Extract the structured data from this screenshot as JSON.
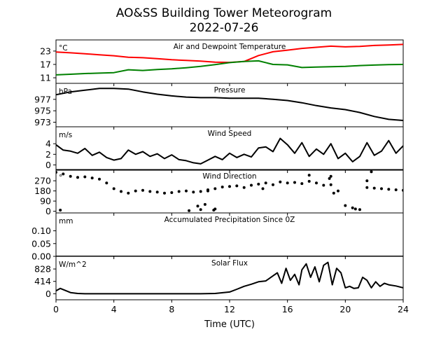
{
  "title": "AO&SS Building Tower Meteorogram",
  "subtitle": "2022-07-26",
  "chart_data": [
    {
      "type": "line",
      "title": "Air and Dewpoint Temperature",
      "unit": "°C",
      "yticks": [
        11,
        17,
        23
      ],
      "ylim": [
        8.5,
        28
      ],
      "xlim": [
        0,
        24
      ],
      "series": [
        {
          "color": "#ff0000",
          "x": [
            0,
            1,
            2,
            3,
            4,
            5,
            6,
            7,
            8,
            9,
            10,
            11,
            12,
            13,
            14,
            15,
            16,
            17,
            18,
            19,
            20,
            21,
            22,
            23,
            24
          ],
          "values": [
            22.6,
            22.2,
            21.8,
            21.3,
            20.9,
            20.2,
            20.0,
            19.6,
            19.1,
            18.8,
            18.5,
            18.0,
            17.9,
            18.3,
            21.0,
            22.7,
            23.4,
            24.2,
            24.7,
            25.2,
            24.9,
            25.1,
            25.5,
            25.7,
            26.0
          ]
        },
        {
          "color": "#008000",
          "x": [
            0,
            1,
            2,
            3,
            4,
            5,
            6,
            7,
            8,
            9,
            10,
            11,
            12,
            13,
            14,
            15,
            16,
            17,
            18,
            19,
            20,
            21,
            22,
            23,
            24
          ],
          "values": [
            12.3,
            12.6,
            12.9,
            13.1,
            13.3,
            14.6,
            14.3,
            14.7,
            15.0,
            15.5,
            16.1,
            16.9,
            17.8,
            18.3,
            18.6,
            17.0,
            16.8,
            15.6,
            15.8,
            16.0,
            16.1,
            16.5,
            16.7,
            16.9,
            17.0
          ]
        }
      ]
    },
    {
      "type": "line",
      "title": "Pressure",
      "unit": "hPa",
      "yticks": [
        973,
        975,
        977
      ],
      "ylim": [
        972.2,
        979.8
      ],
      "xlim": [
        0,
        24
      ],
      "series": [
        {
          "color": "#000000",
          "x": [
            0,
            1,
            2,
            3,
            4,
            5,
            6,
            7,
            8,
            9,
            10,
            11,
            12,
            13,
            14,
            15,
            16,
            17,
            18,
            19,
            20,
            21,
            22,
            23,
            24
          ],
          "values": [
            977.8,
            978.3,
            978.6,
            978.9,
            978.9,
            978.8,
            978.3,
            977.9,
            977.6,
            977.4,
            977.3,
            977.3,
            977.2,
            977.2,
            977.2,
            977.0,
            976.8,
            976.4,
            975.9,
            975.5,
            975.2,
            974.7,
            974.0,
            973.5,
            973.3
          ]
        }
      ]
    },
    {
      "type": "line",
      "title": "Wind Speed",
      "unit": "m/s",
      "yticks": [
        0,
        2,
        4
      ],
      "ylim": [
        -1,
        7.2
      ],
      "xlim": [
        0,
        24
      ],
      "series": [
        {
          "color": "#000000",
          "x": [
            0,
            0.5,
            1,
            1.5,
            2,
            2.5,
            3,
            3.5,
            4,
            4.5,
            5,
            5.5,
            6,
            6.5,
            7,
            7.5,
            8,
            8.5,
            9,
            9.5,
            10,
            10.5,
            11,
            11.5,
            12,
            12.5,
            13,
            13.5,
            14,
            14.5,
            15,
            15.5,
            16,
            16.5,
            17,
            17.5,
            18,
            18.5,
            19,
            19.5,
            20,
            20.5,
            21,
            21.5,
            22,
            22.5,
            23,
            23.5,
            24
          ],
          "values": [
            3.8,
            2.8,
            2.6,
            2.2,
            3.1,
            1.8,
            2.4,
            1.4,
            0.9,
            1.2,
            2.8,
            2.0,
            2.5,
            1.6,
            2.1,
            1.2,
            1.9,
            1.0,
            0.8,
            0.4,
            0.2,
            0.9,
            1.6,
            1.0,
            2.2,
            1.4,
            2.0,
            1.5,
            3.2,
            3.4,
            2.5,
            5.0,
            3.8,
            2.2,
            4.2,
            1.6,
            3.0,
            2.0,
            4.0,
            1.2,
            2.2,
            0.6,
            1.6,
            4.2,
            1.8,
            2.6,
            4.6,
            2.2,
            3.6
          ]
        }
      ]
    },
    {
      "type": "scatter",
      "title": "Wind Direction",
      "unit": "°",
      "yticks": [
        0,
        90,
        180,
        270
      ],
      "ylim": [
        -15,
        370
      ],
      "xlim": [
        0,
        24
      ],
      "series": [
        {
          "color": "#000000",
          "x": [
            0,
            0.5,
            1,
            1.5,
            2,
            2.5,
            3,
            3.5,
            4,
            4.5,
            5,
            5.5,
            6,
            6.5,
            7,
            7.5,
            8,
            8.5,
            9,
            9.5,
            10,
            10.5,
            11,
            11.5,
            12,
            12.5,
            13,
            13.5,
            14,
            14.5,
            15,
            15.5,
            16,
            16.5,
            17,
            17.5,
            18,
            18.5,
            19,
            19.5,
            20,
            20.5,
            21,
            21.5,
            22,
            22.5,
            23,
            23.5,
            24,
            0.3,
            9.2,
            10,
            10.5,
            9.8,
            10.3,
            10.9,
            11,
            18.9,
            19,
            19.2,
            20.7,
            21.8,
            21.5,
            17.5,
            14.3
          ],
          "values": [
            345,
            330,
            310,
            300,
            305,
            295,
            285,
            250,
            200,
            175,
            160,
            180,
            185,
            175,
            170,
            160,
            165,
            175,
            180,
            170,
            175,
            190,
            200,
            215,
            220,
            225,
            210,
            230,
            240,
            250,
            235,
            260,
            250,
            255,
            245,
            265,
            250,
            230,
            235,
            180,
            50,
            30,
            15,
            210,
            205,
            200,
            195,
            190,
            185,
            10,
            5,
            15,
            180,
            45,
            60,
            10,
            20,
            290,
            310,
            160,
            20,
            350,
            270,
            320,
            200
          ]
        }
      ]
    },
    {
      "type": "line",
      "title": "Accumulated Precipitation Since 0Z",
      "unit": "mm",
      "yticks": [
        0.0,
        0.05,
        0.1
      ],
      "yticklabels": [
        "0.00",
        "0.05",
        "0.10"
      ],
      "ylim": [
        0,
        0.17
      ],
      "xlim": [
        0,
        24
      ],
      "series": [
        {
          "color": "#000000",
          "x": [
            0,
            24
          ],
          "values": [
            0,
            0
          ]
        }
      ]
    },
    {
      "type": "line",
      "title": "Solar Flux",
      "unit": "W/m^2",
      "yticks": [
        0,
        414,
        828
      ],
      "ylim": [
        -200,
        1250
      ],
      "xlim": [
        0,
        24
      ],
      "xticks": [
        0,
        4,
        8,
        12,
        16,
        20,
        24
      ],
      "xlabel": "Time (UTC)",
      "series": [
        {
          "color": "#000000",
          "x": [
            0,
            0.3,
            0.6,
            1,
            1.5,
            2,
            4,
            6,
            8,
            10,
            11,
            12,
            12.5,
            13,
            13.5,
            14,
            14.5,
            15,
            15.3,
            15.6,
            15.9,
            16.2,
            16.5,
            16.8,
            17,
            17.3,
            17.6,
            17.9,
            18.2,
            18.5,
            18.8,
            19.1,
            19.4,
            19.7,
            20,
            20.3,
            20.6,
            20.9,
            21.2,
            21.5,
            21.8,
            22.1,
            22.4,
            22.7,
            23,
            23.5,
            24
          ],
          "values": [
            100,
            180,
            120,
            40,
            10,
            0,
            0,
            0,
            0,
            0,
            10,
            60,
            150,
            250,
            320,
            400,
            430,
            600,
            700,
            350,
            850,
            450,
            650,
            300,
            800,
            1000,
            550,
            900,
            400,
            950,
            1050,
            300,
            850,
            700,
            200,
            250,
            180,
            200,
            550,
            450,
            200,
            400,
            250,
            350,
            300,
            260,
            200
          ]
        }
      ]
    }
  ]
}
